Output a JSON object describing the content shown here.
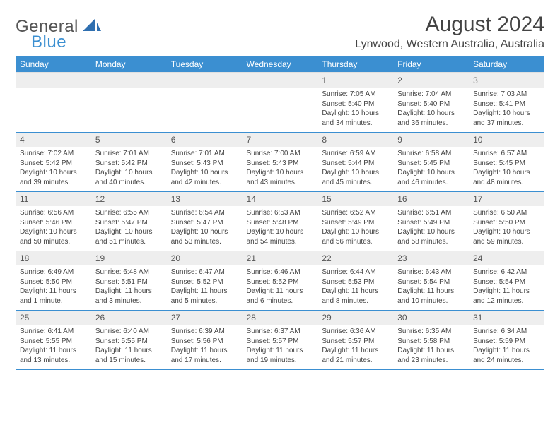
{
  "logo": {
    "general": "General",
    "blue": "Blue",
    "mark_color": "#2f6fb0"
  },
  "title": "August 2024",
  "location": "Lynwood, Western Australia, Australia",
  "header_bg": "#3b8fd1",
  "daynum_bg": "#eeeeee",
  "row_border": "#3b8fd1",
  "weekday_labels": [
    "Sunday",
    "Monday",
    "Tuesday",
    "Wednesday",
    "Thursday",
    "Friday",
    "Saturday"
  ],
  "weeks": [
    [
      null,
      null,
      null,
      null,
      {
        "n": "1",
        "sr": "7:05 AM",
        "ss": "5:40 PM",
        "dl": "10 hours and 34 minutes."
      },
      {
        "n": "2",
        "sr": "7:04 AM",
        "ss": "5:40 PM",
        "dl": "10 hours and 36 minutes."
      },
      {
        "n": "3",
        "sr": "7:03 AM",
        "ss": "5:41 PM",
        "dl": "10 hours and 37 minutes."
      }
    ],
    [
      {
        "n": "4",
        "sr": "7:02 AM",
        "ss": "5:42 PM",
        "dl": "10 hours and 39 minutes."
      },
      {
        "n": "5",
        "sr": "7:01 AM",
        "ss": "5:42 PM",
        "dl": "10 hours and 40 minutes."
      },
      {
        "n": "6",
        "sr": "7:01 AM",
        "ss": "5:43 PM",
        "dl": "10 hours and 42 minutes."
      },
      {
        "n": "7",
        "sr": "7:00 AM",
        "ss": "5:43 PM",
        "dl": "10 hours and 43 minutes."
      },
      {
        "n": "8",
        "sr": "6:59 AM",
        "ss": "5:44 PM",
        "dl": "10 hours and 45 minutes."
      },
      {
        "n": "9",
        "sr": "6:58 AM",
        "ss": "5:45 PM",
        "dl": "10 hours and 46 minutes."
      },
      {
        "n": "10",
        "sr": "6:57 AM",
        "ss": "5:45 PM",
        "dl": "10 hours and 48 minutes."
      }
    ],
    [
      {
        "n": "11",
        "sr": "6:56 AM",
        "ss": "5:46 PM",
        "dl": "10 hours and 50 minutes."
      },
      {
        "n": "12",
        "sr": "6:55 AM",
        "ss": "5:47 PM",
        "dl": "10 hours and 51 minutes."
      },
      {
        "n": "13",
        "sr": "6:54 AM",
        "ss": "5:47 PM",
        "dl": "10 hours and 53 minutes."
      },
      {
        "n": "14",
        "sr": "6:53 AM",
        "ss": "5:48 PM",
        "dl": "10 hours and 54 minutes."
      },
      {
        "n": "15",
        "sr": "6:52 AM",
        "ss": "5:49 PM",
        "dl": "10 hours and 56 minutes."
      },
      {
        "n": "16",
        "sr": "6:51 AM",
        "ss": "5:49 PM",
        "dl": "10 hours and 58 minutes."
      },
      {
        "n": "17",
        "sr": "6:50 AM",
        "ss": "5:50 PM",
        "dl": "10 hours and 59 minutes."
      }
    ],
    [
      {
        "n": "18",
        "sr": "6:49 AM",
        "ss": "5:50 PM",
        "dl": "11 hours and 1 minute."
      },
      {
        "n": "19",
        "sr": "6:48 AM",
        "ss": "5:51 PM",
        "dl": "11 hours and 3 minutes."
      },
      {
        "n": "20",
        "sr": "6:47 AM",
        "ss": "5:52 PM",
        "dl": "11 hours and 5 minutes."
      },
      {
        "n": "21",
        "sr": "6:46 AM",
        "ss": "5:52 PM",
        "dl": "11 hours and 6 minutes."
      },
      {
        "n": "22",
        "sr": "6:44 AM",
        "ss": "5:53 PM",
        "dl": "11 hours and 8 minutes."
      },
      {
        "n": "23",
        "sr": "6:43 AM",
        "ss": "5:54 PM",
        "dl": "11 hours and 10 minutes."
      },
      {
        "n": "24",
        "sr": "6:42 AM",
        "ss": "5:54 PM",
        "dl": "11 hours and 12 minutes."
      }
    ],
    [
      {
        "n": "25",
        "sr": "6:41 AM",
        "ss": "5:55 PM",
        "dl": "11 hours and 13 minutes."
      },
      {
        "n": "26",
        "sr": "6:40 AM",
        "ss": "5:55 PM",
        "dl": "11 hours and 15 minutes."
      },
      {
        "n": "27",
        "sr": "6:39 AM",
        "ss": "5:56 PM",
        "dl": "11 hours and 17 minutes."
      },
      {
        "n": "28",
        "sr": "6:37 AM",
        "ss": "5:57 PM",
        "dl": "11 hours and 19 minutes."
      },
      {
        "n": "29",
        "sr": "6:36 AM",
        "ss": "5:57 PM",
        "dl": "11 hours and 21 minutes."
      },
      {
        "n": "30",
        "sr": "6:35 AM",
        "ss": "5:58 PM",
        "dl": "11 hours and 23 minutes."
      },
      {
        "n": "31",
        "sr": "6:34 AM",
        "ss": "5:59 PM",
        "dl": "11 hours and 24 minutes."
      }
    ]
  ],
  "labels": {
    "sunrise": "Sunrise: ",
    "sunset": "Sunset: ",
    "daylight": "Daylight: "
  }
}
